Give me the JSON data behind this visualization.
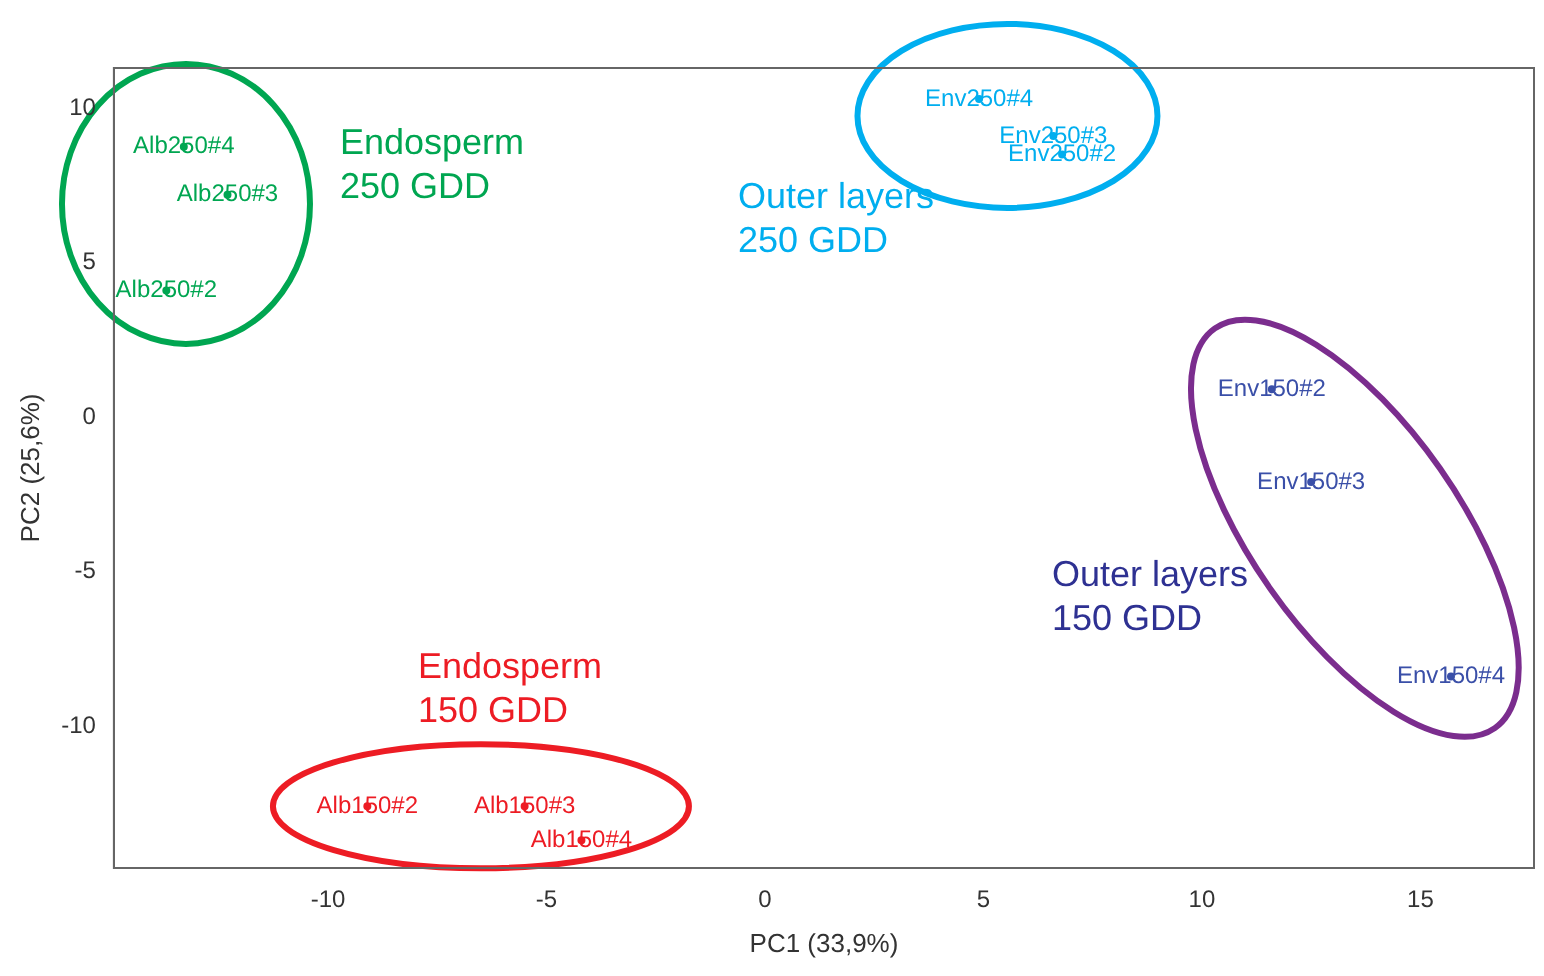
{
  "chart_data": {
    "type": "scatter",
    "xlabel": "PC1 (33,9%)",
    "ylabel": "PC2 (25,6%)",
    "xlim": [
      -14.9,
      17.6
    ],
    "ylim": [
      -14.6,
      11.3
    ],
    "xticks": [
      -10,
      -5,
      0,
      5,
      10,
      15
    ],
    "yticks": [
      -10,
      -5,
      0,
      5,
      10
    ],
    "grid": false,
    "legend": false,
    "series": [
      {
        "color": "#00a651",
        "x": [
          -13.3,
          -12.3,
          -13.7
        ],
        "values": [
          8.75,
          7.2,
          4.1
        ],
        "value_labels": [
          "Alb250#4",
          "Alb250#3",
          "Alb250#2"
        ]
      },
      {
        "color": "#00aeef",
        "x": [
          4.9,
          6.6,
          6.8
        ],
        "values": [
          10.3,
          9.1,
          8.5
        ],
        "value_labels": [
          "Env250#4",
          "Env250#3",
          "Env250#2"
        ]
      },
      {
        "color": "#3a4fa8",
        "x": [
          11.6,
          12.5,
          15.7
        ],
        "values": [
          0.9,
          -2.1,
          -8.4
        ],
        "value_labels": [
          "Env150#2",
          "Env150#3",
          "Env150#4"
        ]
      },
      {
        "color": "#ed1c24",
        "x": [
          -9.1,
          -5.5,
          -4.2
        ],
        "values": [
          -12.6,
          -12.6,
          -13.7
        ],
        "value_labels": [
          "Alb150#2",
          "Alb150#3",
          "Alb150#4"
        ]
      }
    ],
    "annotations": [
      "Endosperm\n250 GDD",
      "Outer layers\n250 GDD",
      "Outer layers\n150 GDD",
      "Endosperm\n150 GDD"
    ]
  }
}
